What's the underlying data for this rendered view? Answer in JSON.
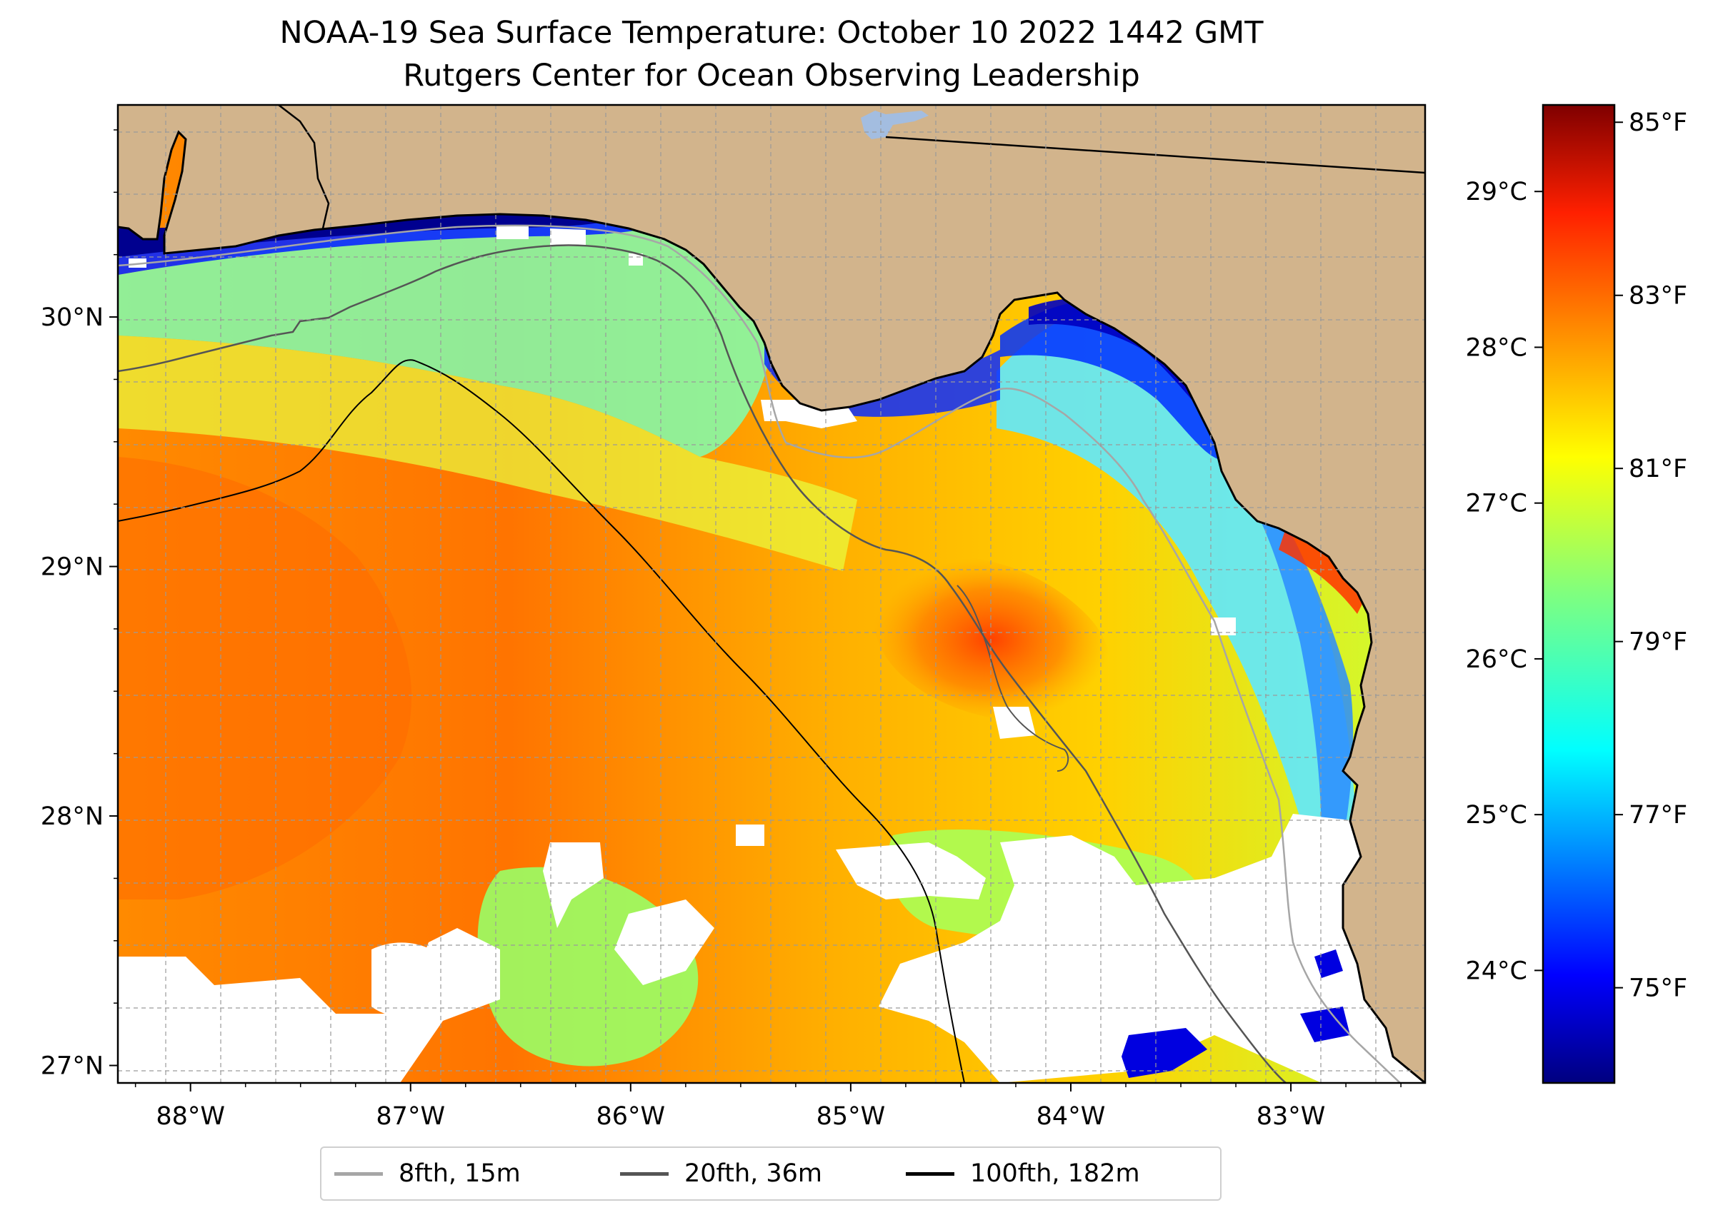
{
  "title": {
    "line1": "NOAA-19 Sea Surface Temperature: October 10 2022 1442 GMT",
    "line2": "Rutgers Center for Ocean Observing Leadership"
  },
  "map": {
    "lon_range": [
      -88.33,
      -82.39
    ],
    "lat_range": [
      26.93,
      30.85
    ],
    "lon_ticks": [
      -88,
      -87,
      -86,
      -85,
      -84,
      -83
    ],
    "lon_tick_labels": [
      "88°W",
      "87°W",
      "86°W",
      "85°W",
      "84°W",
      "83°W"
    ],
    "lat_ticks": [
      27,
      28,
      29,
      30
    ],
    "lat_tick_labels": [
      "27°N",
      "28°N",
      "29°N",
      "30°N"
    ],
    "grid_step_lon": 0.25,
    "grid_step_lat": 0.25,
    "land_color": "#d2b48c",
    "no_data_color": "#ffffff",
    "grid": true
  },
  "colorbar": {
    "colormap": "jet",
    "range_f": [
      73.9,
      85.2
    ],
    "celsius_ticks": [
      24,
      25,
      26,
      27,
      28,
      29
    ],
    "celsius_labels": [
      "24°C",
      "25°C",
      "26°C",
      "27°C",
      "28°C",
      "29°C"
    ],
    "fahrenheit_ticks": [
      75,
      77,
      79,
      81,
      83,
      85
    ],
    "fahrenheit_labels": [
      "75°F",
      "77°F",
      "79°F",
      "81°F",
      "83°F",
      "85°F"
    ],
    "colors": [
      "#00007f",
      "#0000ff",
      "#007fff",
      "#00ffff",
      "#7fff7f",
      "#ffff00",
      "#ff7f00",
      "#ff0000",
      "#7f0000"
    ]
  },
  "legend": {
    "items": [
      {
        "label": "8fth, 15m",
        "color": "#a6a6a6"
      },
      {
        "label": "20fth, 36m",
        "color": "#555555"
      },
      {
        "label": "100fth, 182m",
        "color": "#000000"
      }
    ]
  }
}
